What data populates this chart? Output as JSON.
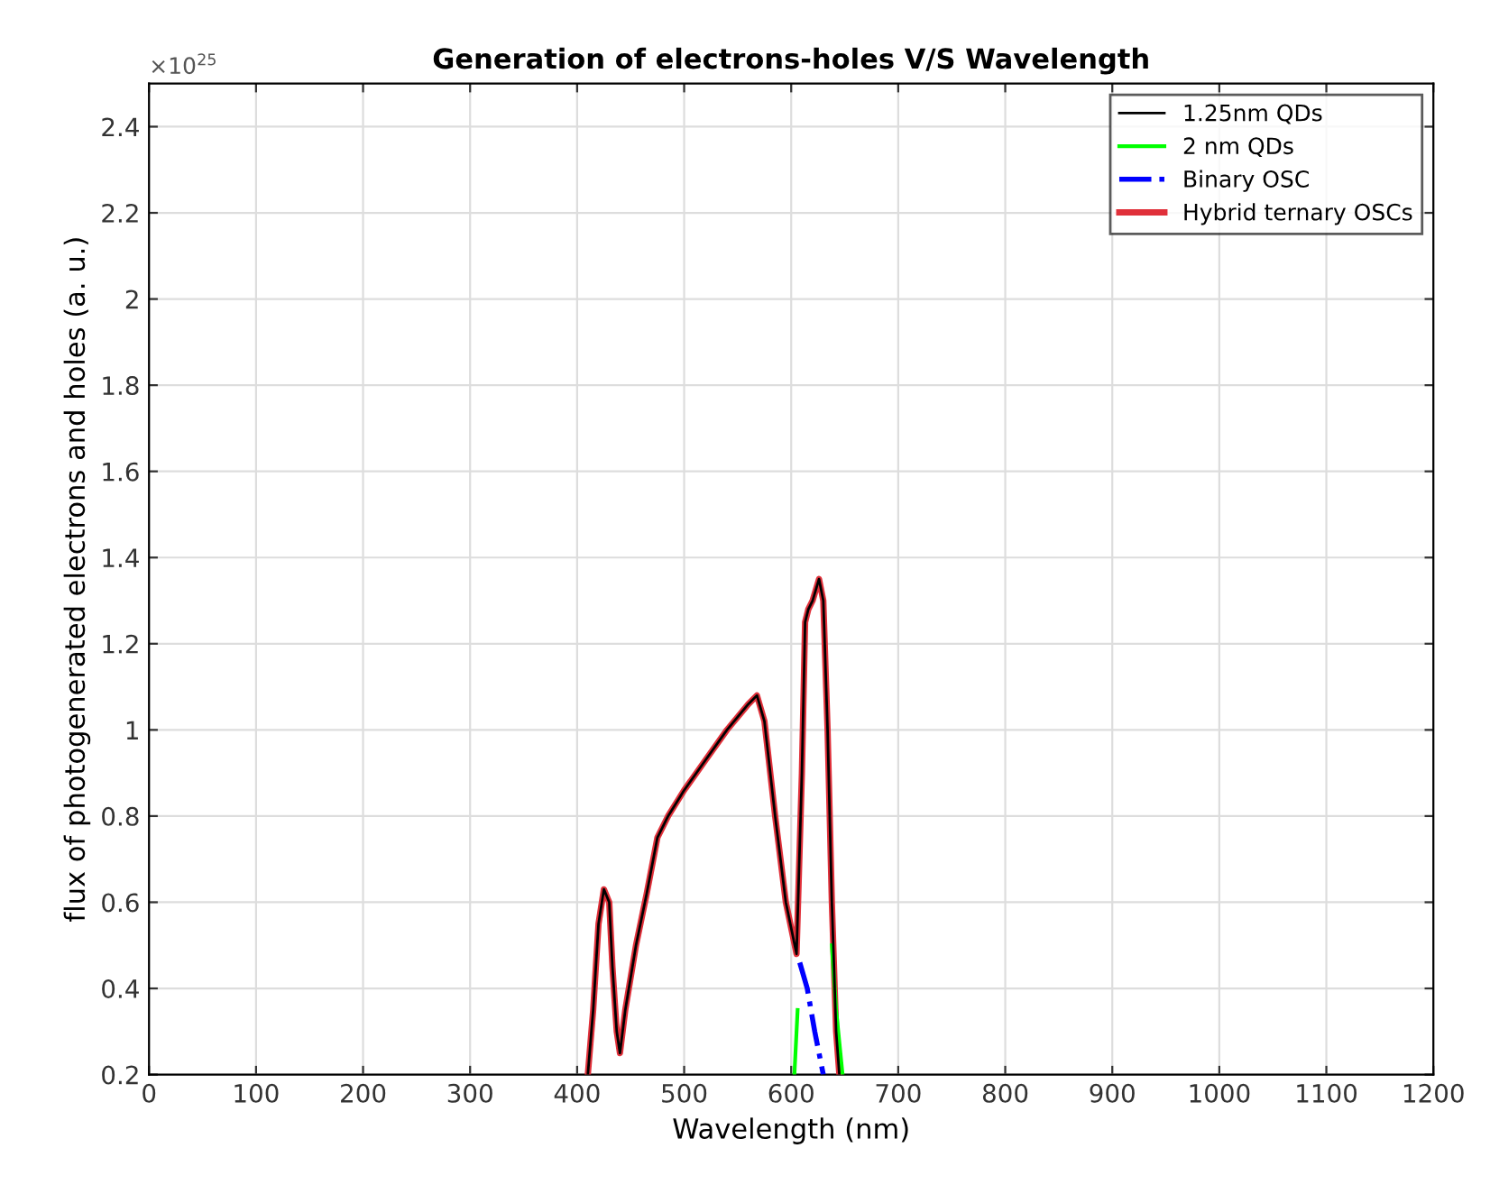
{
  "chart_data": {
    "type": "line",
    "title": "Generation of electrons-holes V/S Wavelength",
    "xlabel": "Wavelength (nm)",
    "ylabel": "flux of photogenerated electrons and holes (a. u.)",
    "annotations": [
      "×10$^{25}$"
    ],
    "series": [
      {
        "name": "1.25nm QDs",
        "color": "#000000",
        "line_style": "solid",
        "x": [
          410,
          415,
          420,
          425,
          430,
          433,
          437,
          440,
          445,
          455,
          465,
          475,
          485,
          500,
          520,
          540,
          560,
          568,
          575,
          585,
          595,
          605,
          610,
          613,
          616,
          620,
          626,
          630,
          634,
          638,
          642,
          645
        ],
        "values": [
          0.2,
          0.35,
          0.55,
          0.63,
          0.6,
          0.45,
          0.3,
          0.25,
          0.35,
          0.5,
          0.62,
          0.75,
          0.8,
          0.86,
          0.93,
          1.0,
          1.06,
          1.08,
          1.02,
          0.8,
          0.6,
          0.48,
          0.9,
          1.25,
          1.28,
          1.3,
          1.35,
          1.3,
          1.0,
          0.6,
          0.3,
          0.2
        ]
      },
      {
        "name": "2 nm QDs",
        "color": "#00ff00",
        "line_style": "solid",
        "x": [
          603,
          606,
          608,
          638,
          642,
          648
        ],
        "values": [
          0.2,
          0.35,
          null,
          0.5,
          0.35,
          0.2
        ]
      },
      {
        "name": "Binary OSC",
        "color": "#0000ff",
        "line_style": "dashdot",
        "x": [
          608,
          615,
          622,
          630
        ],
        "values": [
          0.46,
          0.4,
          0.3,
          0.2
        ]
      },
      {
        "name": "Hybrid ternary OSCs",
        "color": "#e0303a",
        "line_style": "solid",
        "x": [
          410,
          415,
          420,
          425,
          430,
          433,
          437,
          440,
          445,
          455,
          465,
          475,
          485,
          500,
          520,
          540,
          560,
          568,
          575,
          585,
          595,
          605,
          610,
          613,
          616,
          620,
          626,
          630,
          634,
          638,
          642,
          645
        ],
        "values": [
          0.2,
          0.35,
          0.55,
          0.63,
          0.6,
          0.45,
          0.3,
          0.25,
          0.35,
          0.5,
          0.62,
          0.75,
          0.8,
          0.86,
          0.93,
          1.0,
          1.06,
          1.08,
          1.02,
          0.8,
          0.6,
          0.48,
          0.9,
          1.25,
          1.28,
          1.3,
          1.35,
          1.3,
          1.0,
          0.6,
          0.3,
          0.2
        ]
      }
    ],
    "xlim": [
      0,
      1200
    ],
    "xticks": [
      0,
      100,
      200,
      300,
      400,
      500,
      600,
      700,
      800,
      900,
      1000,
      1100,
      1200
    ],
    "ylim": [
      0.2,
      2.5
    ],
    "yticks": [
      0.2,
      0.4,
      0.6,
      0.8,
      1,
      1.2,
      1.4,
      1.6,
      1.8,
      2,
      2.2,
      2.4
    ],
    "grid": true,
    "legend": "top right",
    "marker": "none"
  }
}
